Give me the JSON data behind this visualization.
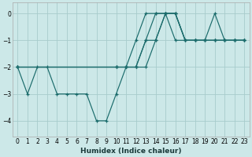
{
  "xlabel": "Humidex (Indice chaleur)",
  "bg_color": "#cce8e8",
  "line_color": "#1a6b6b",
  "grid_color": "#a8cccc",
  "xlim": [
    -0.5,
    23.5
  ],
  "ylim": [
    -4.6,
    0.4
  ],
  "yticks": [
    0,
    -1,
    -2,
    -3,
    -4
  ],
  "xticks": [
    0,
    1,
    2,
    3,
    4,
    5,
    6,
    7,
    8,
    9,
    10,
    11,
    12,
    13,
    14,
    15,
    16,
    17,
    18,
    19,
    20,
    21,
    22,
    23
  ],
  "lines": [
    {
      "x": [
        0,
        1,
        2,
        3,
        4,
        5,
        6,
        7,
        8,
        9,
        10,
        11,
        12,
        13,
        14,
        15,
        16,
        17,
        18,
        19,
        20,
        21,
        22,
        23
      ],
      "y": [
        -2,
        -3,
        -2,
        -2,
        -3,
        -3,
        -3,
        -3,
        -4,
        -4,
        -3,
        -2,
        -2,
        -1,
        0,
        0,
        -1,
        -1,
        -1,
        -1,
        -1,
        -1,
        -1,
        -1
      ]
    },
    {
      "x": [
        0,
        10,
        11,
        12,
        13,
        14,
        15,
        16,
        17,
        18,
        19,
        20,
        21,
        22,
        23
      ],
      "y": [
        -2,
        -2,
        -2,
        -2,
        -2,
        -1,
        0,
        0,
        -1,
        -1,
        -1,
        -1,
        -1,
        -1,
        -1
      ]
    },
    {
      "x": [
        0,
        10,
        11,
        12,
        13,
        14,
        15,
        16,
        17,
        18,
        19,
        20,
        21,
        22,
        23
      ],
      "y": [
        -2,
        -2,
        -2,
        -2,
        -1,
        -1,
        0,
        0,
        -1,
        -1,
        -1,
        -1,
        -1,
        -1,
        -1
      ]
    },
    {
      "x": [
        0,
        10,
        11,
        12,
        13,
        14,
        15,
        16,
        17,
        18,
        19,
        20,
        21,
        22,
        23
      ],
      "y": [
        -2,
        -2,
        -2,
        -1,
        0,
        0,
        0,
        0,
        -1,
        -1,
        -1,
        0,
        -1,
        -1,
        -1
      ]
    }
  ]
}
